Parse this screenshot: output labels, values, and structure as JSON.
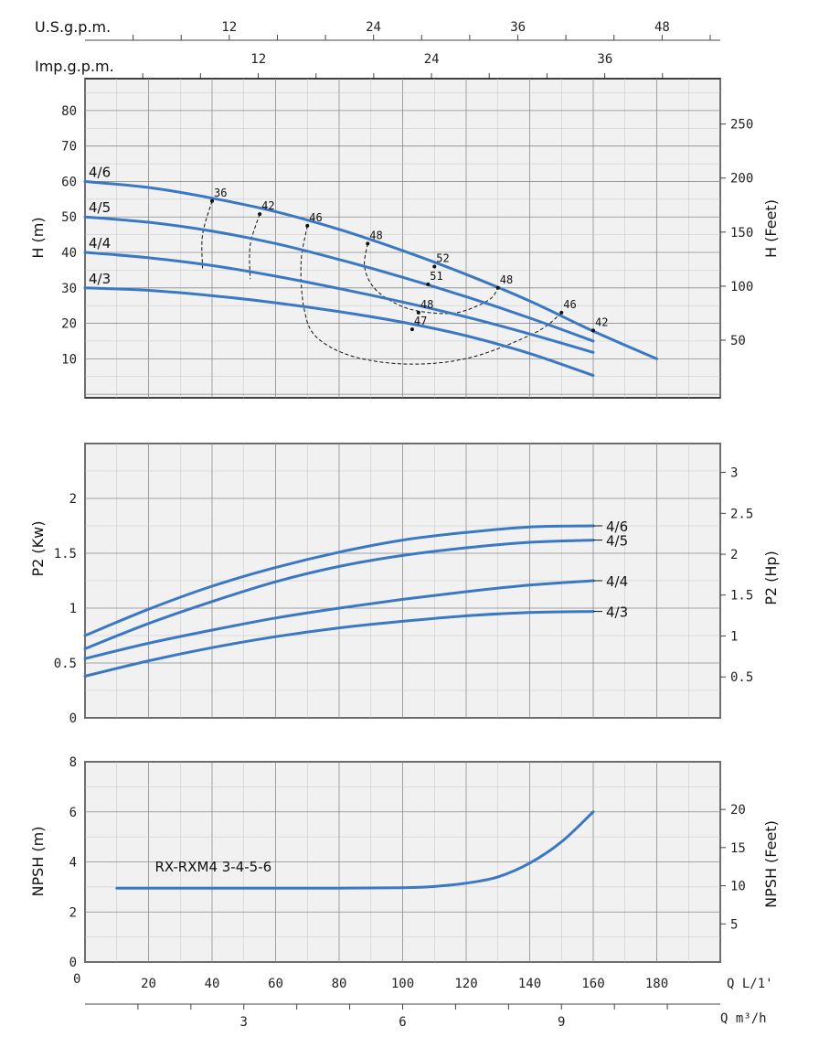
{
  "colors": {
    "series": "#3b78c3",
    "grid_major": "#8a8a8a",
    "grid_minor": "#c4c4c4",
    "panel_bg": "#f1f1f1"
  },
  "top_axes": {
    "usgpm": {
      "label": "U.S.g.p.m.",
      "ticks": [
        "12",
        "24",
        "36",
        "48"
      ],
      "values_lpm": [
        45.4,
        90.8,
        136.3,
        181.7
      ]
    },
    "impgpm": {
      "label": "Imp.g.p.m.",
      "ticks": [
        "12",
        "24",
        "36"
      ],
      "values_lpm": [
        54.6,
        109.1,
        163.7
      ]
    }
  },
  "bottom_axes": {
    "q_lpm": {
      "label": "Q L/1'",
      "ticks": [
        "20",
        "40",
        "60",
        "80",
        "100",
        "120",
        "140",
        "160",
        "180"
      ],
      "zero": "0"
    },
    "q_m3h": {
      "label": "Q m³/h",
      "ticks": [
        "3",
        "6",
        "9"
      ],
      "values_lpm": [
        50,
        100,
        150
      ]
    }
  },
  "chart_data": [
    {
      "type": "line",
      "panel": "head",
      "ylabel": "H (m)",
      "y2label": "H (Feet)",
      "xlim": [
        0,
        200
      ],
      "ylim": [
        -1,
        89
      ],
      "yticks": [
        "10",
        "20",
        "30",
        "40",
        "50",
        "60",
        "70",
        "80"
      ],
      "y2ticks": [
        "50",
        "100",
        "150",
        "200",
        "250"
      ],
      "y2_values_m": [
        15.24,
        30.48,
        45.72,
        60.96,
        76.2
      ],
      "series": [
        {
          "name": "4/6",
          "x": [
            0,
            20,
            40,
            60,
            80,
            100,
            120,
            140,
            160,
            180
          ],
          "y": [
            60,
            58.3,
            55.3,
            51.5,
            46.5,
            40.5,
            33.8,
            26.3,
            17.8,
            10
          ]
        },
        {
          "name": "4/5",
          "x": [
            0,
            20,
            40,
            60,
            80,
            100,
            120,
            140,
            160
          ],
          "y": [
            50,
            48.5,
            46,
            42.5,
            38,
            33,
            27.5,
            21.5,
            15
          ]
        },
        {
          "name": "4/4",
          "x": [
            0,
            20,
            40,
            60,
            80,
            100,
            120,
            140,
            160
          ],
          "y": [
            40,
            38.5,
            36.3,
            33.3,
            29.8,
            26,
            21.8,
            17,
            11.8
          ]
        },
        {
          "name": "4/3",
          "x": [
            0,
            20,
            40,
            60,
            80,
            100,
            120,
            140,
            160
          ],
          "y": [
            30,
            29.3,
            27.8,
            25.8,
            23.3,
            20.3,
            16.5,
            11.5,
            5.3
          ]
        }
      ],
      "efficiency_labels": [
        {
          "label": "36",
          "x": 40,
          "y": 54.5
        },
        {
          "label": "42",
          "x": 55,
          "y": 50.8
        },
        {
          "label": "46",
          "x": 70,
          "y": 47.5
        },
        {
          "label": "48",
          "x": 89,
          "y": 42.5
        },
        {
          "label": "52",
          "x": 110,
          "y": 36
        },
        {
          "label": "51",
          "x": 108,
          "y": 31
        },
        {
          "label": "48",
          "x": 130,
          "y": 30
        },
        {
          "label": "48",
          "x": 105,
          "y": 23
        },
        {
          "label": "47",
          "x": 103,
          "y": 18.3
        },
        {
          "label": "46",
          "x": 150,
          "y": 23
        },
        {
          "label": "42",
          "x": 160,
          "y": 18
        }
      ],
      "iso_lines": [
        {
          "x": [
            40,
            37,
            37
          ],
          "y": [
            54.5,
            45,
            35.5
          ]
        },
        {
          "x": [
            55,
            52,
            52
          ],
          "y": [
            50.8,
            42,
            32.5
          ]
        },
        {
          "x": [
            70,
            68,
            69,
            73,
            85,
            103,
            122,
            142,
            150
          ],
          "y": [
            47.5,
            37,
            24,
            16,
            10.5,
            8.5,
            10.5,
            17.5,
            23
          ]
        },
        {
          "x": [
            89,
            88,
            91,
            98,
            106,
            117,
            127,
            130
          ],
          "y": [
            42.5,
            36,
            30,
            25.5,
            23.3,
            23,
            26.5,
            30
          ]
        }
      ]
    },
    {
      "type": "line",
      "panel": "power",
      "ylabel": "P2 (Kw)",
      "y2label": "P2 (Hp)",
      "xlim": [
        0,
        200
      ],
      "ylim": [
        0,
        2.5
      ],
      "yticks": [
        "0",
        "0.5",
        "1",
        "1.5",
        "2"
      ],
      "y2ticks": [
        "0.5",
        "1",
        "1.5",
        "2",
        "2.5",
        "3"
      ],
      "y2_values_kw": [
        0.373,
        0.746,
        1.119,
        1.491,
        1.864,
        2.237
      ],
      "series": [
        {
          "name": "4/6",
          "x": [
            0,
            20,
            40,
            60,
            80,
            100,
            120,
            140,
            160
          ],
          "y": [
            0.75,
            0.99,
            1.2,
            1.37,
            1.51,
            1.62,
            1.69,
            1.74,
            1.75
          ]
        },
        {
          "name": "4/5",
          "x": [
            0,
            20,
            40,
            60,
            80,
            100,
            120,
            140,
            160
          ],
          "y": [
            0.63,
            0.86,
            1.06,
            1.24,
            1.38,
            1.48,
            1.55,
            1.6,
            1.62
          ]
        },
        {
          "name": "4/4",
          "x": [
            0,
            20,
            40,
            60,
            80,
            100,
            120,
            140,
            160
          ],
          "y": [
            0.54,
            0.68,
            0.8,
            0.91,
            1.0,
            1.08,
            1.15,
            1.21,
            1.25
          ]
        },
        {
          "name": "4/3",
          "x": [
            0,
            20,
            40,
            60,
            80,
            100,
            120,
            140,
            160
          ],
          "y": [
            0.38,
            0.52,
            0.64,
            0.74,
            0.82,
            0.88,
            0.93,
            0.96,
            0.97
          ]
        }
      ]
    },
    {
      "type": "line",
      "panel": "npsh",
      "ylabel": "NPSH (m)",
      "y2label": "NPSH (Feet)",
      "xlim": [
        0,
        200
      ],
      "ylim": [
        0,
        8
      ],
      "yticks": [
        "0",
        "2",
        "4",
        "6",
        "8"
      ],
      "y2ticks": [
        "5",
        "10",
        "15",
        "20"
      ],
      "y2_values_m": [
        1.524,
        3.048,
        4.572,
        6.096
      ],
      "series": [
        {
          "name": "RX-RXM4 3-4-5-6",
          "x": [
            10,
            40,
            80,
            100,
            110,
            120,
            130,
            140,
            150,
            160
          ],
          "y": [
            2.95,
            2.95,
            2.95,
            2.97,
            3.02,
            3.15,
            3.4,
            3.95,
            4.8,
            6.0
          ]
        }
      ]
    }
  ]
}
